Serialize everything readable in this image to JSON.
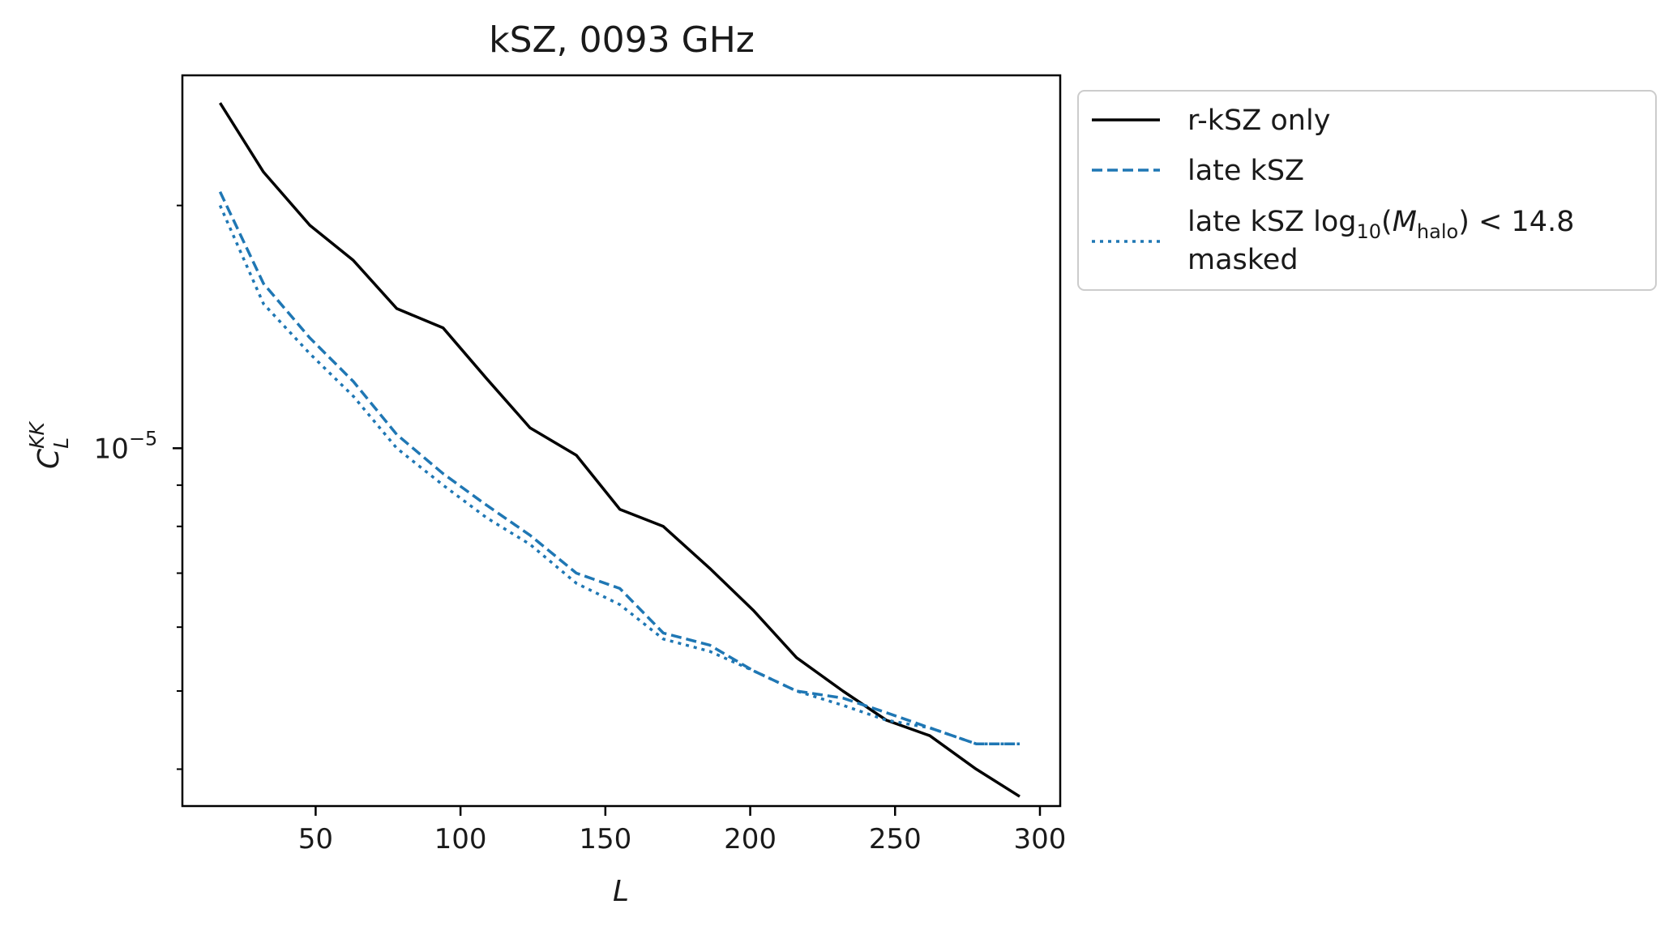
{
  "chart_data": {
    "type": "line",
    "title": "kSZ, 0093 GHz",
    "xlabel": "L",
    "ylabel": "C_L^{KK}",
    "ylabel_main": "C",
    "ylabel_sub": "L",
    "ylabel_sup": "KK",
    "xlim": [
      4,
      307
    ],
    "ylim": [
      3.6e-06,
      2.9e-05
    ],
    "yscale": "log",
    "x_ticks": [
      50,
      100,
      150,
      200,
      250,
      300
    ],
    "x_tick_labels": [
      "50",
      "100",
      "150",
      "200",
      "250",
      "300"
    ],
    "y_major_ticks": [
      1e-05
    ],
    "y_tick_label": {
      "base": "10",
      "exponent": "−5"
    },
    "y_minor_ticks": [
      4e-06,
      5e-06,
      6e-06,
      7e-06,
      8e-06,
      9e-06,
      2e-05
    ],
    "grid": false,
    "legend_position": "outside-upper-right",
    "x": [
      17,
      32,
      48,
      63,
      78,
      94,
      109,
      124,
      140,
      155,
      170,
      186,
      201,
      216,
      232,
      247,
      262,
      278,
      293
    ],
    "series": [
      {
        "name": "r-kSZ only",
        "color": "#000000",
        "style": "solid",
        "values": [
          2.68e-05,
          2.2e-05,
          1.89e-05,
          1.71e-05,
          1.49e-05,
          1.41e-05,
          1.22e-05,
          1.06e-05,
          9.8e-06,
          8.4e-06,
          8e-06,
          7.1e-06,
          6.3e-06,
          5.5e-06,
          5e-06,
          4.6e-06,
          4.4e-06,
          4e-06,
          3.7e-06
        ]
      },
      {
        "name": "late kSZ",
        "color": "#1f77b4",
        "style": "dashed",
        "values": [
          2.08e-05,
          1.6e-05,
          1.37e-05,
          1.21e-05,
          1.04e-05,
          9.3e-06,
          8.5e-06,
          7.8e-06,
          7e-06,
          6.7e-06,
          5.9e-06,
          5.7e-06,
          5.3e-06,
          5e-06,
          4.9e-06,
          4.7e-06,
          4.5e-06,
          4.3e-06,
          4.3e-06
        ]
      },
      {
        "name_line1": "late kSZ log",
        "name_sub": "10",
        "name_paren_open": "(",
        "name_math": "M",
        "name_math_sub": "halo",
        "name_tail": ") < 14.8",
        "name_line2": "masked",
        "color": "#1f77b4",
        "style": "dotted",
        "values": [
          2e-05,
          1.51e-05,
          1.31e-05,
          1.16e-05,
          1e-05,
          9e-06,
          8.2e-06,
          7.6e-06,
          6.8e-06,
          6.4e-06,
          5.8e-06,
          5.6e-06,
          5.3e-06,
          5e-06,
          4.8e-06,
          4.6e-06,
          4.5e-06,
          4.3e-06,
          4.3e-06
        ]
      }
    ]
  }
}
